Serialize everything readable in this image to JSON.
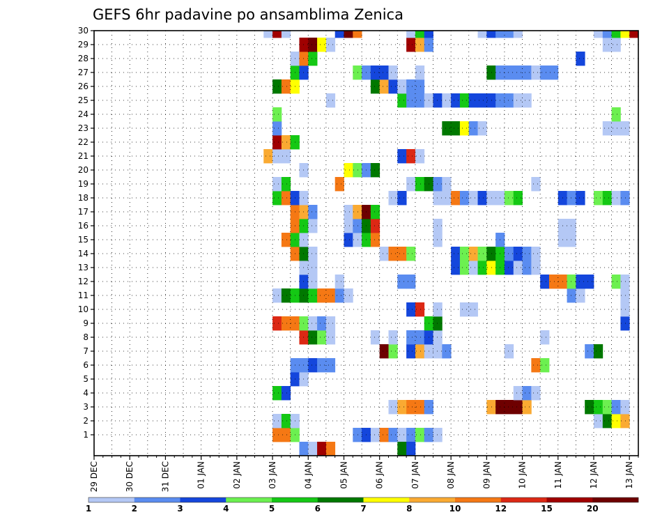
{
  "chart_data": {
    "type": "heatmap",
    "title": "GEFS 6hr padavine po ansamblima Zenica",
    "x_ticks": [
      "29 DEC",
      "30 DEC",
      "31 DEC",
      "01 JAN",
      "02 JAN",
      "03 JAN",
      "04 JAN",
      "05 JAN",
      "06 JAN",
      "07 JAN",
      "08 JAN",
      "09 JAN",
      "10 JAN",
      "11 JAN",
      "12 JAN",
      "13 JAN"
    ],
    "y_ticks": [
      "1",
      "2",
      "3",
      "4",
      "5",
      "6",
      "7",
      "8",
      "9",
      "10",
      "11",
      "12",
      "13",
      "14",
      "15",
      "16",
      "17",
      "18",
      "19",
      "20",
      "21",
      "22",
      "23",
      "24",
      "25",
      "26",
      "27",
      "28",
      "29",
      "30"
    ],
    "x_step_hours": 6,
    "grid": "dotted",
    "colorbar": {
      "labels": [
        "1",
        "2",
        "3",
        "4",
        "5",
        "6",
        "7",
        "8",
        "10",
        "12",
        "15",
        "20"
      ],
      "colors": [
        "#b4c8f5",
        "#5a8cf0",
        "#1446dc",
        "#6cf050",
        "#14c814",
        "#007800",
        "#ffff00",
        "#faaa32",
        "#f57814",
        "#dc2814",
        "#a00000",
        "#6e0000"
      ]
    },
    "cells": [
      [
        1,
        21,
        10
      ],
      [
        1,
        22,
        10
      ],
      [
        1,
        23,
        4
      ],
      [
        1,
        30,
        2
      ],
      [
        1,
        31,
        3
      ],
      [
        1,
        32,
        1
      ],
      [
        1,
        33,
        10
      ],
      [
        1,
        34,
        2
      ],
      [
        1,
        35,
        1
      ],
      [
        1,
        36,
        2
      ],
      [
        1,
        37,
        4
      ],
      [
        1,
        38,
        2
      ],
      [
        1,
        39,
        1
      ],
      [
        2,
        21,
        1
      ],
      [
        2,
        22,
        5
      ],
      [
        2,
        23,
        1
      ],
      [
        2,
        57,
        1
      ],
      [
        2,
        58,
        6
      ],
      [
        2,
        59,
        7
      ],
      [
        2,
        60,
        9
      ],
      [
        3,
        34,
        1
      ],
      [
        3,
        35,
        9
      ],
      [
        3,
        36,
        11
      ],
      [
        3,
        37,
        11
      ],
      [
        3,
        38,
        2
      ],
      [
        3,
        45,
        9
      ],
      [
        3,
        46,
        20
      ],
      [
        3,
        47,
        20
      ],
      [
        3,
        48,
        20
      ],
      [
        3,
        49,
        9
      ],
      [
        3,
        56,
        6
      ],
      [
        3,
        57,
        5
      ],
      [
        3,
        58,
        4
      ],
      [
        3,
        59,
        2
      ],
      [
        3,
        60,
        1
      ],
      [
        4,
        21,
        5
      ],
      [
        4,
        22,
        3
      ],
      [
        4,
        48,
        1
      ],
      [
        4,
        49,
        2
      ],
      [
        4,
        50,
        1
      ],
      [
        5,
        23,
        3
      ],
      [
        5,
        24,
        1
      ],
      [
        6,
        23,
        2
      ],
      [
        6,
        24,
        2
      ],
      [
        6,
        25,
        3
      ],
      [
        6,
        26,
        2
      ],
      [
        6,
        27,
        2
      ],
      [
        6,
        50,
        11
      ],
      [
        6,
        51,
        4
      ],
      [
        7,
        33,
        20
      ],
      [
        7,
        34,
        4
      ],
      [
        7,
        36,
        3
      ],
      [
        7,
        37,
        8
      ],
      [
        7,
        38,
        1
      ],
      [
        7,
        39,
        1
      ],
      [
        7,
        40,
        2
      ],
      [
        7,
        47,
        1
      ],
      [
        7,
        56,
        2
      ],
      [
        7,
        57,
        6
      ],
      [
        8,
        24,
        12
      ],
      [
        8,
        25,
        6
      ],
      [
        8,
        26,
        4
      ],
      [
        8,
        27,
        1
      ],
      [
        8,
        32,
        1
      ],
      [
        8,
        34,
        1
      ],
      [
        8,
        36,
        2
      ],
      [
        8,
        37,
        2
      ],
      [
        8,
        38,
        3
      ],
      [
        8,
        39,
        1
      ],
      [
        8,
        51,
        1
      ],
      [
        9,
        21,
        12
      ],
      [
        9,
        22,
        11
      ],
      [
        9,
        23,
        11
      ],
      [
        9,
        24,
        4
      ],
      [
        9,
        25,
        1
      ],
      [
        9,
        26,
        2
      ],
      [
        9,
        27,
        1
      ],
      [
        9,
        38,
        5
      ],
      [
        9,
        39,
        6
      ],
      [
        9,
        60,
        3
      ],
      [
        10,
        36,
        3
      ],
      [
        10,
        37,
        12
      ],
      [
        10,
        39,
        1
      ],
      [
        10,
        42,
        1
      ],
      [
        10,
        43,
        1
      ],
      [
        10,
        60,
        1
      ],
      [
        11,
        21,
        1
      ],
      [
        11,
        22,
        6
      ],
      [
        11,
        23,
        5
      ],
      [
        11,
        24,
        6
      ],
      [
        11,
        25,
        5
      ],
      [
        11,
        26,
        10
      ],
      [
        11,
        27,
        10
      ],
      [
        11,
        28,
        2
      ],
      [
        11,
        29,
        1
      ],
      [
        11,
        54,
        2
      ],
      [
        11,
        55,
        1
      ],
      [
        11,
        60,
        1
      ],
      [
        12,
        24,
        3
      ],
      [
        12,
        25,
        1
      ],
      [
        12,
        28,
        1
      ],
      [
        12,
        35,
        2
      ],
      [
        12,
        36,
        2
      ],
      [
        12,
        51,
        3
      ],
      [
        12,
        52,
        10
      ],
      [
        12,
        53,
        10
      ],
      [
        12,
        54,
        4
      ],
      [
        12,
        55,
        3
      ],
      [
        12,
        56,
        3
      ],
      [
        12,
        59,
        4
      ],
      [
        12,
        60,
        1
      ],
      [
        13,
        24,
        1
      ],
      [
        13,
        25,
        1
      ],
      [
        13,
        41,
        3
      ],
      [
        13,
        42,
        4
      ],
      [
        13,
        43,
        1
      ],
      [
        13,
        44,
        5
      ],
      [
        13,
        45,
        7
      ],
      [
        13,
        46,
        5
      ],
      [
        13,
        47,
        3
      ],
      [
        13,
        48,
        1
      ],
      [
        13,
        49,
        2
      ],
      [
        13,
        50,
        1
      ],
      [
        14,
        23,
        10
      ],
      [
        14,
        24,
        6
      ],
      [
        14,
        25,
        1
      ],
      [
        14,
        33,
        1
      ],
      [
        14,
        34,
        10
      ],
      [
        14,
        35,
        10
      ],
      [
        14,
        36,
        4
      ],
      [
        14,
        41,
        3
      ],
      [
        14,
        42,
        4
      ],
      [
        14,
        43,
        8
      ],
      [
        14,
        44,
        4
      ],
      [
        14,
        45,
        6
      ],
      [
        14,
        46,
        5
      ],
      [
        14,
        47,
        2
      ],
      [
        14,
        48,
        3
      ],
      [
        14,
        49,
        2
      ],
      [
        14,
        50,
        1
      ],
      [
        15,
        22,
        10
      ],
      [
        15,
        23,
        5
      ],
      [
        15,
        24,
        1
      ],
      [
        15,
        29,
        3
      ],
      [
        15,
        30,
        1
      ],
      [
        15,
        31,
        5
      ],
      [
        15,
        32,
        11
      ],
      [
        15,
        39,
        1
      ],
      [
        15,
        46,
        2
      ],
      [
        15,
        53,
        1
      ],
      [
        15,
        54,
        1
      ],
      [
        16,
        23,
        10
      ],
      [
        16,
        24,
        5
      ],
      [
        16,
        25,
        1
      ],
      [
        16,
        29,
        1
      ],
      [
        16,
        30,
        2
      ],
      [
        16,
        31,
        6
      ],
      [
        16,
        32,
        12
      ],
      [
        16,
        39,
        1
      ],
      [
        16,
        53,
        1
      ],
      [
        16,
        54,
        1
      ],
      [
        17,
        23,
        10
      ],
      [
        17,
        24,
        8
      ],
      [
        17,
        25,
        2
      ],
      [
        17,
        29,
        1
      ],
      [
        17,
        30,
        8
      ],
      [
        17,
        31,
        20
      ],
      [
        17,
        32,
        5
      ],
      [
        18,
        21,
        5
      ],
      [
        18,
        22,
        10
      ],
      [
        18,
        23,
        3
      ],
      [
        18,
        24,
        1
      ],
      [
        18,
        34,
        1
      ],
      [
        18,
        35,
        3
      ],
      [
        18,
        39,
        1
      ],
      [
        18,
        40,
        1
      ],
      [
        18,
        41,
        11
      ],
      [
        18,
        42,
        2
      ],
      [
        18,
        43,
        1
      ],
      [
        18,
        44,
        3
      ],
      [
        18,
        45,
        1
      ],
      [
        18,
        46,
        1
      ],
      [
        18,
        47,
        4
      ],
      [
        18,
        48,
        5
      ],
      [
        18,
        53,
        3
      ],
      [
        18,
        54,
        2
      ],
      [
        18,
        55,
        3
      ],
      [
        18,
        57,
        4
      ],
      [
        18,
        58,
        5
      ],
      [
        18,
        59,
        1
      ],
      [
        18,
        60,
        2
      ],
      [
        19,
        21,
        1
      ],
      [
        19,
        22,
        5
      ],
      [
        19,
        28,
        10
      ],
      [
        19,
        36,
        1
      ],
      [
        19,
        37,
        5
      ],
      [
        19,
        38,
        6
      ],
      [
        19,
        39,
        2
      ],
      [
        19,
        40,
        1
      ],
      [
        19,
        50,
        1
      ],
      [
        20,
        24,
        1
      ],
      [
        20,
        29,
        7
      ],
      [
        20,
        30,
        4
      ],
      [
        20,
        31,
        2
      ],
      [
        20,
        32,
        6
      ],
      [
        21,
        20,
        8
      ],
      [
        21,
        21,
        1
      ],
      [
        21,
        22,
        1
      ],
      [
        21,
        35,
        3
      ],
      [
        21,
        36,
        14
      ],
      [
        21,
        37,
        1
      ],
      [
        22,
        21,
        15
      ],
      [
        22,
        22,
        8
      ],
      [
        22,
        23,
        5
      ],
      [
        23,
        21,
        2
      ],
      [
        23,
        40,
        6
      ],
      [
        23,
        41,
        6
      ],
      [
        23,
        42,
        7
      ],
      [
        23,
        43,
        2
      ],
      [
        23,
        44,
        1
      ],
      [
        23,
        58,
        1
      ],
      [
        23,
        59,
        1
      ],
      [
        23,
        60,
        1
      ],
      [
        24,
        21,
        4
      ],
      [
        24,
        59,
        4
      ],
      [
        25,
        27,
        1
      ],
      [
        25,
        35,
        5
      ],
      [
        25,
        36,
        2
      ],
      [
        25,
        37,
        2
      ],
      [
        25,
        38,
        1
      ],
      [
        25,
        39,
        3
      ],
      [
        25,
        40,
        1
      ],
      [
        25,
        41,
        3
      ],
      [
        25,
        42,
        5
      ],
      [
        25,
        43,
        3
      ],
      [
        25,
        44,
        3
      ],
      [
        25,
        45,
        3
      ],
      [
        25,
        46,
        2
      ],
      [
        25,
        47,
        2
      ],
      [
        25,
        48,
        1
      ],
      [
        25,
        49,
        1
      ],
      [
        26,
        21,
        6
      ],
      [
        26,
        22,
        10
      ],
      [
        26,
        23,
        7
      ],
      [
        26,
        32,
        6
      ],
      [
        26,
        33,
        9
      ],
      [
        26,
        34,
        3
      ],
      [
        26,
        35,
        1
      ],
      [
        26,
        36,
        2
      ],
      [
        26,
        37,
        2
      ],
      [
        27,
        23,
        5
      ],
      [
        27,
        24,
        3
      ],
      [
        27,
        30,
        4
      ],
      [
        27,
        31,
        2
      ],
      [
        27,
        32,
        3
      ],
      [
        27,
        33,
        3
      ],
      [
        27,
        34,
        1
      ],
      [
        27,
        37,
        1
      ],
      [
        27,
        45,
        6
      ],
      [
        27,
        46,
        2
      ],
      [
        27,
        47,
        2
      ],
      [
        27,
        48,
        2
      ],
      [
        27,
        49,
        2
      ],
      [
        27,
        50,
        1
      ],
      [
        27,
        51,
        2
      ],
      [
        27,
        52,
        2
      ],
      [
        28,
        23,
        1
      ],
      [
        28,
        24,
        10
      ],
      [
        28,
        25,
        5
      ],
      [
        28,
        55,
        3
      ],
      [
        29,
        24,
        15
      ],
      [
        29,
        25,
        20
      ],
      [
        29,
        26,
        7
      ],
      [
        29,
        27,
        1
      ],
      [
        29,
        36,
        15
      ],
      [
        29,
        37,
        9
      ],
      [
        29,
        38,
        2
      ],
      [
        29,
        58,
        1
      ],
      [
        29,
        59,
        1
      ],
      [
        30,
        20,
        1
      ],
      [
        30,
        21,
        15
      ],
      [
        30,
        22,
        1
      ],
      [
        30,
        28,
        3
      ],
      [
        30,
        29,
        20
      ],
      [
        30,
        30,
        10
      ],
      [
        30,
        36,
        1
      ],
      [
        30,
        37,
        5
      ],
      [
        30,
        38,
        3
      ],
      [
        30,
        44,
        1
      ],
      [
        30,
        45,
        3
      ],
      [
        30,
        46,
        2
      ],
      [
        30,
        47,
        2
      ],
      [
        30,
        48,
        1
      ],
      [
        30,
        57,
        1
      ],
      [
        30,
        58,
        2
      ],
      [
        30,
        59,
        5
      ],
      [
        30,
        60,
        7
      ],
      [
        30,
        61,
        15
      ],
      [
        0,
        24,
        2
      ],
      [
        0,
        25,
        1
      ],
      [
        0,
        26,
        15
      ],
      [
        0,
        27,
        10
      ],
      [
        0,
        35,
        6
      ],
      [
        0,
        36,
        3
      ]
    ]
  }
}
